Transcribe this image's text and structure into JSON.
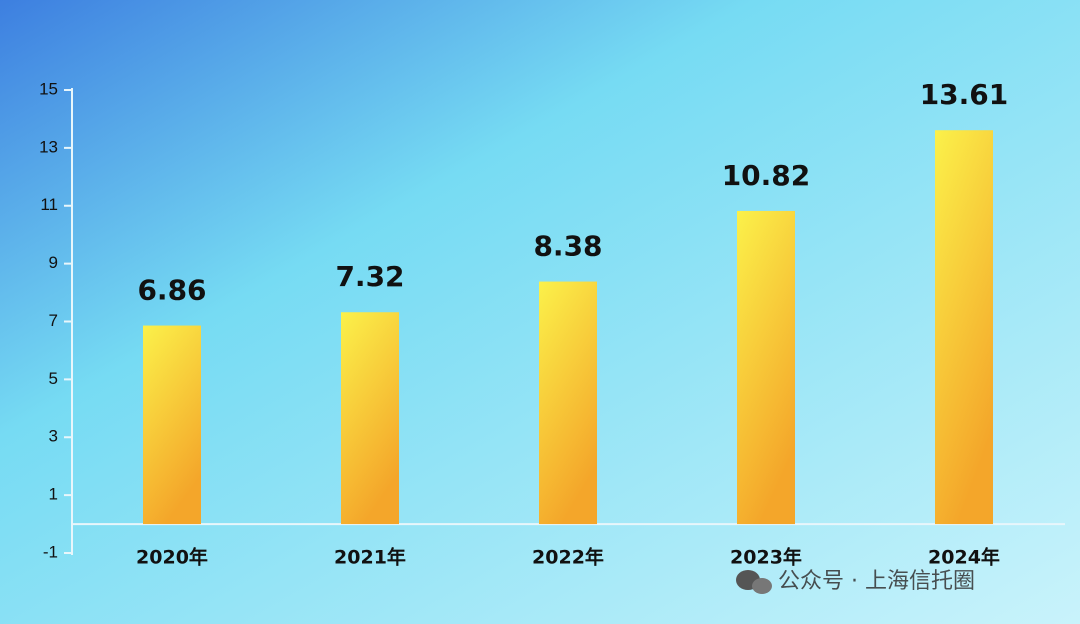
{
  "chart_data": {
    "type": "bar",
    "categories": [
      "2020年",
      "2021年",
      "2022年",
      "2023年",
      "2024年"
    ],
    "values": [
      6.86,
      7.32,
      8.38,
      10.82,
      13.61
    ],
    "color": "#fbf14a",
    "ylim": [
      -1,
      15
    ],
    "yticks": [
      -1,
      1,
      3,
      5,
      7,
      9,
      11,
      13,
      15
    ],
    "watermark": "公众号 · 上海信托圈"
  }
}
